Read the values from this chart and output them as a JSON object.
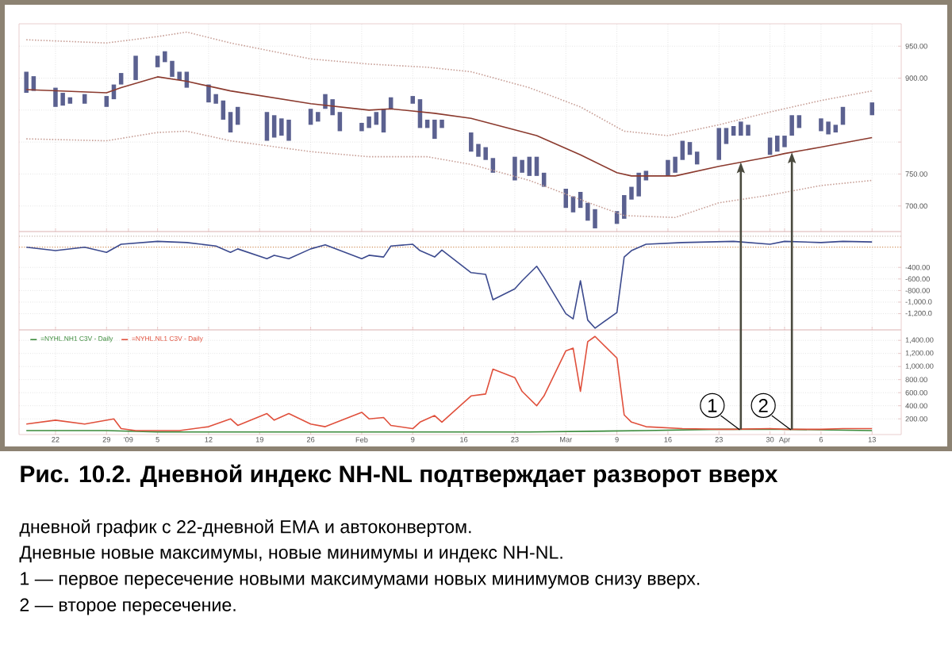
{
  "chart_data": [
    {
      "type": "bar",
      "xlim": [
        "2008-12-17",
        "2009-04-17"
      ],
      "ylim": [
        660,
        985
      ],
      "grid": true,
      "tick_labels": "y",
      "xticks": [
        {
          "value": "2008-12-22",
          "label": null
        },
        {
          "value": "2008-12-29",
          "label": null
        },
        {
          "value": "2009-01-01",
          "label": null
        },
        {
          "value": "2009-01-05",
          "label": null
        },
        {
          "value": "2009-01-12",
          "label": null
        },
        {
          "value": "2009-01-19",
          "label": null
        },
        {
          "value": "2009-01-26",
          "label": null
        },
        {
          "value": "2009-02-02",
          "label": null
        },
        {
          "value": "2009-02-09",
          "label": null
        },
        {
          "value": "2009-02-16",
          "label": null
        },
        {
          "value": "2009-02-23",
          "label": null
        },
        {
          "value": "2009-03-02",
          "label": null
        },
        {
          "value": "2009-03-09",
          "label": null
        },
        {
          "value": "2009-03-16",
          "label": null
        },
        {
          "value": "2009-03-23",
          "label": null
        },
        {
          "value": "2009-03-30",
          "label": null
        },
        {
          "value": "2009-04-01",
          "label": null
        },
        {
          "value": "2009-04-06",
          "label": null
        },
        {
          "value": "2009-04-13",
          "label": null
        }
      ],
      "yticks": [
        {
          "value": 700,
          "label": "700.00"
        },
        {
          "value": 750,
          "label": "750.00"
        },
        {
          "value": 800,
          "label": null
        },
        {
          "value": 850,
          "label": null
        },
        {
          "value": 900,
          "label": "900.00"
        },
        {
          "value": 950,
          "label": "950.00"
        }
      ],
      "series": [
        {
          "type": "bar",
          "color": "#5b6190",
          "x": [
            "2008-12-18",
            "2008-12-19",
            "2008-12-22",
            "2008-12-23",
            "2008-12-24",
            "2008-12-26",
            "2008-12-29",
            "2008-12-30",
            "2008-12-31",
            "2009-01-02",
            "2009-01-05",
            "2009-01-06",
            "2009-01-07",
            "2009-01-08",
            "2009-01-09",
            "2009-01-12",
            "2009-01-13",
            "2009-01-14",
            "2009-01-15",
            "2009-01-16",
            "2009-01-20",
            "2009-01-21",
            "2009-01-22",
            "2009-01-23",
            "2009-01-26",
            "2009-01-27",
            "2009-01-28",
            "2009-01-29",
            "2009-01-30",
            "2009-02-02",
            "2009-02-03",
            "2009-02-04",
            "2009-02-05",
            "2009-02-06",
            "2009-02-09",
            "2009-02-10",
            "2009-02-11",
            "2009-02-12",
            "2009-02-13",
            "2009-02-17",
            "2009-02-18",
            "2009-02-19",
            "2009-02-20",
            "2009-02-23",
            "2009-02-24",
            "2009-02-25",
            "2009-02-26",
            "2009-02-27",
            "2009-03-02",
            "2009-03-03",
            "2009-03-04",
            "2009-03-05",
            "2009-03-06",
            "2009-03-09",
            "2009-03-10",
            "2009-03-11",
            "2009-03-12",
            "2009-03-13",
            "2009-03-16",
            "2009-03-17",
            "2009-03-18",
            "2009-03-19",
            "2009-03-20",
            "2009-03-23",
            "2009-03-24",
            "2009-03-25",
            "2009-03-26",
            "2009-03-27",
            "2009-03-30",
            "2009-03-31",
            "2009-04-01",
            "2009-04-02",
            "2009-04-03",
            "2009-04-06",
            "2009-04-07",
            "2009-04-08",
            "2009-04-09",
            "2009-04-13"
          ],
          "base": [
            877,
            880,
            855,
            857,
            860,
            860,
            855,
            867,
            890,
            897,
            917,
            925,
            902,
            897,
            885,
            862,
            860,
            835,
            815,
            827,
            802,
            807,
            810,
            802,
            827,
            832,
            852,
            842,
            817,
            817,
            822,
            827,
            815,
            852,
            860,
            822,
            822,
            805,
            822,
            785,
            777,
            772,
            752,
            740,
            752,
            747,
            747,
            730,
            697,
            690,
            697,
            677,
            665,
            672,
            680,
            710,
            715,
            740,
            747,
            752,
            772,
            780,
            765,
            772,
            797,
            810,
            810,
            810,
            780,
            785,
            792,
            810,
            822,
            817,
            812,
            815,
            827,
            842
          ],
          "values": [
            33,
            23,
            30,
            20,
            10,
            15,
            17,
            23,
            18,
            38,
            18,
            17,
            25,
            13,
            25,
            28,
            15,
            30,
            32,
            28,
            45,
            35,
            27,
            33,
            25,
            15,
            23,
            25,
            30,
            13,
            18,
            20,
            37,
            18,
            12,
            45,
            13,
            30,
            13,
            30,
            20,
            20,
            23,
            37,
            20,
            30,
            30,
            22,
            30,
            25,
            25,
            28,
            30,
            20,
            37,
            20,
            37,
            15,
            25,
            25,
            30,
            20,
            20,
            50,
            25,
            15,
            22,
            17,
            27,
            25,
            18,
            32,
            20,
            20,
            20,
            12,
            28,
            20
          ]
        },
        {
          "type": "line",
          "color": "#8b3a2e",
          "x": [
            "2008-12-18",
            "2008-12-29",
            "2008-12-31",
            "2009-01-05",
            "2009-01-09",
            "2009-01-15",
            "2009-01-26",
            "2009-02-03",
            "2009-02-06",
            "2009-02-12",
            "2009-02-17",
            "2009-02-26",
            "2009-03-04",
            "2009-03-09",
            "2009-03-11",
            "2009-03-17",
            "2009-03-23",
            "2009-03-30",
            "2009-04-01",
            "2009-04-06",
            "2009-04-13"
          ],
          "values": [
            882,
            877,
            885,
            902,
            895,
            880,
            860,
            850,
            852,
            845,
            837,
            810,
            780,
            752,
            747,
            747,
            762,
            777,
            782,
            792,
            807
          ]
        },
        {
          "type": "line",
          "color": "#c8a098",
          "line_style": "dotted",
          "x": [
            "2008-12-18",
            "2008-12-29",
            "2009-01-05",
            "2009-01-09",
            "2009-01-15",
            "2009-01-26",
            "2009-02-03",
            "2009-02-11",
            "2009-02-17",
            "2009-02-25",
            "2009-03-04",
            "2009-03-10",
            "2009-03-16",
            "2009-03-23",
            "2009-03-30",
            "2009-04-06",
            "2009-04-13"
          ],
          "values": [
            960,
            955,
            965,
            972,
            955,
            930,
            922,
            917,
            910,
            885,
            855,
            817,
            810,
            827,
            847,
            865,
            880
          ]
        },
        {
          "type": "line",
          "color": "#c8a098",
          "line_style": "dotted",
          "x": [
            "2008-12-18",
            "2008-12-29",
            "2009-01-05",
            "2009-01-09",
            "2009-01-15",
            "2009-01-26",
            "2009-02-03",
            "2009-02-11",
            "2009-02-17",
            "2009-02-25",
            "2009-03-04",
            "2009-03-10",
            "2009-03-17",
            "2009-03-23",
            "2009-03-30",
            "2009-04-06",
            "2009-04-13"
          ],
          "values": [
            805,
            802,
            815,
            817,
            802,
            785,
            777,
            777,
            765,
            740,
            710,
            685,
            682,
            705,
            717,
            732,
            740
          ]
        }
      ]
    },
    {
      "type": "line",
      "xlim": [
        "2008-12-17",
        "2009-04-17"
      ],
      "ylim": [
        -1480,
        220
      ],
      "grid": true,
      "tick_labels": "y",
      "xticks": [
        {
          "value": "2008-12-22",
          "label": null
        },
        {
          "value": "2008-12-29",
          "label": null
        },
        {
          "value": "2009-01-01",
          "label": null
        },
        {
          "value": "2009-01-05",
          "label": null
        },
        {
          "value": "2009-01-12",
          "label": null
        },
        {
          "value": "2009-01-19",
          "label": null
        },
        {
          "value": "2009-01-26",
          "label": null
        },
        {
          "value": "2009-02-02",
          "label": null
        },
        {
          "value": "2009-02-09",
          "label": null
        },
        {
          "value": "2009-02-16",
          "label": null
        },
        {
          "value": "2009-02-23",
          "label": null
        },
        {
          "value": "2009-03-02",
          "label": null
        },
        {
          "value": "2009-03-09",
          "label": null
        },
        {
          "value": "2009-03-16",
          "label": null
        },
        {
          "value": "2009-03-23",
          "label": null
        },
        {
          "value": "2009-03-30",
          "label": null
        },
        {
          "value": "2009-04-01",
          "label": null
        },
        {
          "value": "2009-04-06",
          "label": null
        },
        {
          "value": "2009-04-13",
          "label": null
        }
      ],
      "yticks": [
        {
          "value": -400,
          "label": "-400.00"
        },
        {
          "value": -600,
          "label": "-600.00"
        },
        {
          "value": -800,
          "label": "-800.00"
        },
        {
          "value": -1000,
          "label": "-1,000.0"
        },
        {
          "value": -1200,
          "label": "-1,200.0"
        }
      ],
      "ref_lines": [
        {
          "axis": "y",
          "value": 140,
          "color": "#c8b8b0",
          "line_style": "dotted"
        },
        {
          "axis": "y",
          "value": -50,
          "color": "#d0905a",
          "line_style": "dotted"
        }
      ],
      "series": [
        {
          "color": "#3c4a8e",
          "x": [
            "2008-12-18",
            "2008-12-22",
            "2008-12-26",
            "2008-12-29",
            "2008-12-31",
            "2009-01-05",
            "2009-01-09",
            "2009-01-13",
            "2009-01-15",
            "2009-01-16",
            "2009-01-20",
            "2009-01-21",
            "2009-01-23",
            "2009-01-26",
            "2009-01-28",
            "2009-02-02",
            "2009-02-03",
            "2009-02-05",
            "2009-02-06",
            "2009-02-09",
            "2009-02-10",
            "2009-02-12",
            "2009-02-13",
            "2009-02-17",
            "2009-02-19",
            "2009-02-20",
            "2009-02-23",
            "2009-02-24",
            "2009-02-26",
            "2009-02-27",
            "2009-03-02",
            "2009-03-03",
            "2009-03-04",
            "2009-03-05",
            "2009-03-06",
            "2009-03-09",
            "2009-03-10",
            "2009-03-11",
            "2009-03-13",
            "2009-03-18",
            "2009-03-25",
            "2009-03-30",
            "2009-04-01",
            "2009-04-06",
            "2009-04-09",
            "2009-04-13"
          ],
          "values": [
            -50,
            -110,
            -50,
            -140,
            0,
            50,
            30,
            -30,
            -140,
            -80,
            -250,
            -190,
            -250,
            -80,
            -10,
            -250,
            -190,
            -220,
            -30,
            0,
            -110,
            -220,
            -100,
            -490,
            -520,
            -960,
            -770,
            -630,
            -380,
            -570,
            -1200,
            -1290,
            -630,
            -1310,
            -1450,
            -1180,
            -220,
            -110,
            0,
            30,
            50,
            0,
            50,
            30,
            50,
            40
          ]
        }
      ]
    },
    {
      "type": "line",
      "title": "Рис. 10.2. Дневной индекс NH-NL подтверждает разворот вверх",
      "annotations": [
        "дневной график с 22-дневной EMA и автоконвертом.",
        "Дневные новые максимумы, новые минимумы и индекс NH-NL.",
        "1 — первое пересечение новыми максимумами новых минимумов снизу вверх.",
        "2 — второе пересечение.",
        {
          "text": "1",
          "x": "2009-03-26",
          "y": 40
        },
        {
          "text": "2",
          "x": "2009-04-02",
          "y": 40
        }
      ],
      "xlim": [
        "2008-12-17",
        "2009-04-17"
      ],
      "ylim": [
        -40,
        1560
      ],
      "grid": true,
      "legend": "top left",
      "xticks": [
        {
          "value": "2008-12-22",
          "label": "22"
        },
        {
          "value": "2008-12-29",
          "label": "29"
        },
        {
          "value": "2009-01-01",
          "label": "'09"
        },
        {
          "value": "2009-01-05",
          "label": "5"
        },
        {
          "value": "2009-01-12",
          "label": "12"
        },
        {
          "value": "2009-01-19",
          "label": "19"
        },
        {
          "value": "2009-01-26",
          "label": "26"
        },
        {
          "value": "2009-02-02",
          "label": "Feb"
        },
        {
          "value": "2009-02-09",
          "label": "9"
        },
        {
          "value": "2009-02-16",
          "label": "16"
        },
        {
          "value": "2009-02-23",
          "label": "23"
        },
        {
          "value": "2009-03-02",
          "label": "Mar"
        },
        {
          "value": "2009-03-09",
          "label": "9"
        },
        {
          "value": "2009-03-16",
          "label": "16"
        },
        {
          "value": "2009-03-23",
          "label": "23"
        },
        {
          "value": "2009-03-30",
          "label": "30"
        },
        {
          "value": "2009-04-01",
          "label": "Apr"
        },
        {
          "value": "2009-04-06",
          "label": "6"
        },
        {
          "value": "2009-04-13",
          "label": "13"
        }
      ],
      "yticks": [
        {
          "value": 200,
          "label": "200.00"
        },
        {
          "value": 400,
          "label": "400.00"
        },
        {
          "value": 600,
          "label": "600.00"
        },
        {
          "value": 800,
          "label": "800.00"
        },
        {
          "value": 1000,
          "label": "1,000.00"
        },
        {
          "value": 1200,
          "label": "1,200.00"
        },
        {
          "value": 1400,
          "label": "1,400.00"
        }
      ],
      "series": [
        {
          "name": "=NYHL.NH1 C3V - Daily",
          "color": "#3a8a3a",
          "x": [
            "2008-12-18",
            "2008-12-29",
            "2009-01-05",
            "2009-01-15",
            "2009-02-06",
            "2009-02-25",
            "2009-03-13",
            "2009-03-23",
            "2009-03-30",
            "2009-04-01",
            "2009-04-13"
          ],
          "values": [
            20,
            20,
            0,
            0,
            0,
            0,
            20,
            40,
            40,
            40,
            20
          ]
        },
        {
          "name": "=NYHL.NL1 C3V - Daily",
          "color": "#e0503c",
          "x": [
            "2008-12-18",
            "2008-12-22",
            "2008-12-26",
            "2008-12-30",
            "2008-12-31",
            "2009-01-02",
            "2009-01-08",
            "2009-01-12",
            "2009-01-15",
            "2009-01-16",
            "2009-01-20",
            "2009-01-21",
            "2009-01-23",
            "2009-01-26",
            "2009-01-28",
            "2009-02-02",
            "2009-02-03",
            "2009-02-05",
            "2009-02-06",
            "2009-02-09",
            "2009-02-10",
            "2009-02-12",
            "2009-02-13",
            "2009-02-17",
            "2009-02-19",
            "2009-02-20",
            "2009-02-23",
            "2009-02-24",
            "2009-02-26",
            "2009-02-27",
            "2009-03-02",
            "2009-03-03",
            "2009-03-04",
            "2009-03-05",
            "2009-03-06",
            "2009-03-09",
            "2009-03-10",
            "2009-03-11",
            "2009-03-13",
            "2009-03-18",
            "2009-03-23",
            "2009-03-25",
            "2009-03-30",
            "2009-04-01",
            "2009-04-06",
            "2009-04-09",
            "2009-04-13"
          ],
          "values": [
            120,
            180,
            120,
            200,
            50,
            20,
            20,
            80,
            200,
            100,
            280,
            180,
            280,
            120,
            80,
            300,
            200,
            220,
            100,
            50,
            150,
            250,
            150,
            550,
            580,
            960,
            830,
            620,
            400,
            550,
            1240,
            1280,
            620,
            1380,
            1460,
            1130,
            260,
            150,
            80,
            50,
            40,
            40,
            50,
            40,
            40,
            50,
            50
          ]
        }
      ]
    }
  ]
}
